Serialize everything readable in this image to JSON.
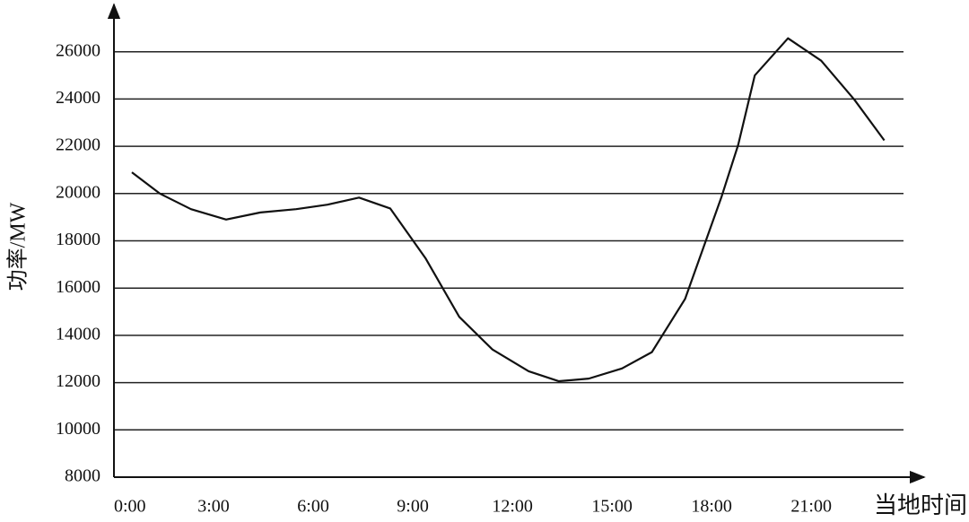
{
  "chart_data": {
    "type": "line",
    "y_label": "功率/MW",
    "x_label": "当地时间",
    "x": [
      0.54,
      1.38,
      2.32,
      3.38,
      4.41,
      5.49,
      6.43,
      7.38,
      8.32,
      9.38,
      10.4,
      11.4,
      12.49,
      13.4,
      14.3,
      15.3,
      16.2,
      17.2,
      18.3,
      18.8,
      19.3,
      20.3,
      21.3,
      22.3,
      23.2
    ],
    "series": [
      {
        "color": "#111111",
        "values": [
          20900,
          20000,
          19340,
          18900,
          19200,
          19340,
          19530,
          19830,
          19370,
          17270,
          14780,
          13400,
          12480,
          12060,
          12170,
          12600,
          13290,
          15540,
          19870,
          22060,
          25000,
          26570,
          25620,
          23970,
          22250
        ]
      }
    ],
    "xlim": [
      0,
      24.4
    ],
    "xticks": [
      {
        "value": 0,
        "label": "0:00"
      },
      {
        "value": 3,
        "label": "3:00"
      },
      {
        "value": 6,
        "label": "6:00"
      },
      {
        "value": 9,
        "label": "9:00"
      },
      {
        "value": 12,
        "label": "12:00"
      },
      {
        "value": 15,
        "label": "15:00"
      },
      {
        "value": 18,
        "label": "18:00"
      },
      {
        "value": 21,
        "label": "21:00"
      }
    ],
    "ylim": [
      8000,
      28000
    ],
    "yticks": [
      8000,
      10000,
      12000,
      14000,
      16000,
      18000,
      20000,
      22000,
      24000,
      26000
    ],
    "grid": true
  }
}
